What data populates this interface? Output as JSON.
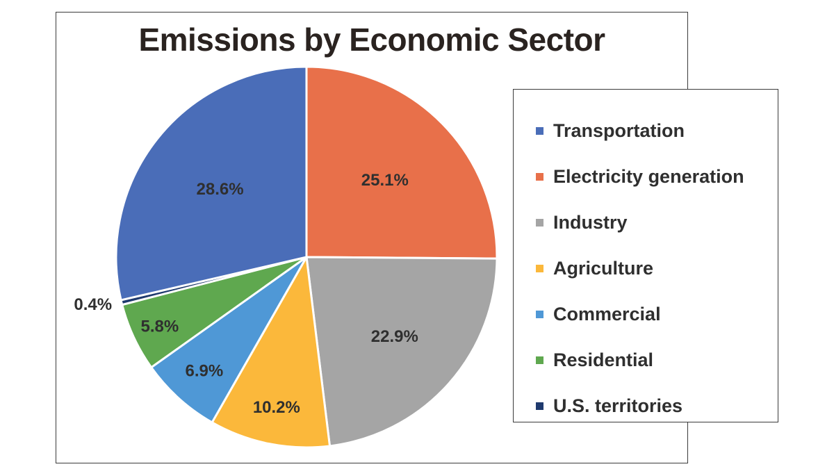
{
  "chart_data": {
    "type": "pie",
    "title": "Emissions by Economic Sector",
    "slices": [
      {
        "label": "Electricity generation",
        "value": 25.1,
        "display": "25.1%",
        "color": "#E8704A"
      },
      {
        "label": "Industry",
        "value": 22.9,
        "display": "22.9%",
        "color": "#A5A5A5"
      },
      {
        "label": "Agriculture",
        "value": 10.2,
        "display": "10.2%",
        "color": "#FBB83B"
      },
      {
        "label": "Commercial",
        "value": 6.9,
        "display": "6.9%",
        "color": "#4F98D6"
      },
      {
        "label": "Residential",
        "value": 5.8,
        "display": "5.8%",
        "color": "#5FA84F"
      },
      {
        "label": "U.S. territories",
        "value": 0.4,
        "display": "0.4%",
        "color": "#1F3A6E"
      },
      {
        "label": "Transportation",
        "value": 28.6,
        "display": "28.6%",
        "color": "#4A6DB8"
      }
    ],
    "legend": {
      "placement": "right",
      "items": [
        {
          "label": "Transportation",
          "color": "#4A6DB8"
        },
        {
          "label": "Electricity generation",
          "color": "#E8704A"
        },
        {
          "label": "Industry",
          "color": "#A5A5A5"
        },
        {
          "label": "Agriculture",
          "color": "#FBB83B"
        },
        {
          "label": "Commercial",
          "color": "#4F98D6"
        },
        {
          "label": "Residential",
          "color": "#5FA84F"
        },
        {
          "label": "U.S. territories",
          "color": "#1F3A6E"
        }
      ]
    }
  }
}
